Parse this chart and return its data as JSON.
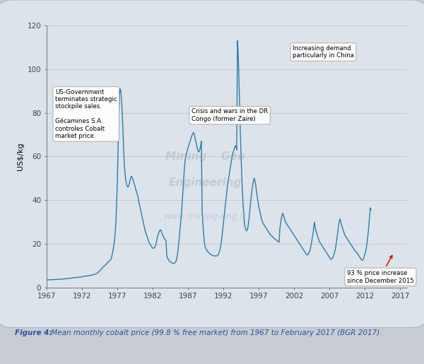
{
  "ylabel": "US$/kg",
  "xlim": [
    1967,
    2018
  ],
  "ylim": [
    0,
    120
  ],
  "yticks": [
    0,
    20,
    40,
    60,
    80,
    100,
    120
  ],
  "xticks": [
    1967,
    1972,
    1977,
    1982,
    1987,
    1992,
    1997,
    2002,
    2007,
    2012,
    2017
  ],
  "line_color": "#2d7ea8",
  "outer_bg": "#d4d9e0",
  "inner_bg": "#ffffff",
  "caption_label": "Figure 4:",
  "caption_text": " Mean monthly cobalt price (99.8 % free market) from 1967 to February 2017 (BGR 2017).",
  "caption_color": "#2b4fa0",
  "watermark1": "Mining    Geo",
  "watermark2": "Engineering",
  "watermark3": "www.mining-eng.ir",
  "ann1_text": "US-Government\nterminates strategic\nstockpile sales.\n\nGécamines S.A.\ncontroles Cobalt\nmarket price.",
  "ann2_text": "Crisis and wars in the DR\nCongo (former Zaire)",
  "ann3_text": "Increasing demand\nparticularly in China",
  "ann4_text": "93 % price increase\nsince December 2015",
  "years": [
    1967.0,
    1967.1,
    1967.2,
    1967.3,
    1967.4,
    1967.5,
    1967.6,
    1967.7,
    1967.8,
    1967.9,
    1968.0,
    1968.1,
    1968.2,
    1968.3,
    1968.4,
    1968.5,
    1968.6,
    1968.7,
    1968.8,
    1968.9,
    1969.0,
    1969.1,
    1969.2,
    1969.3,
    1969.4,
    1969.5,
    1969.6,
    1969.7,
    1969.8,
    1969.9,
    1970.0,
    1970.1,
    1970.2,
    1970.3,
    1970.4,
    1970.5,
    1970.6,
    1970.7,
    1970.8,
    1970.9,
    1971.0,
    1971.1,
    1971.2,
    1971.3,
    1971.4,
    1971.5,
    1971.6,
    1971.7,
    1971.8,
    1971.9,
    1972.0,
    1972.1,
    1972.2,
    1972.3,
    1972.4,
    1972.5,
    1972.6,
    1972.7,
    1972.8,
    1972.9,
    1973.0,
    1973.1,
    1973.2,
    1973.3,
    1973.4,
    1973.5,
    1973.6,
    1973.7,
    1973.8,
    1973.9,
    1974.0,
    1974.1,
    1974.2,
    1974.3,
    1974.4,
    1974.5,
    1974.6,
    1974.7,
    1974.8,
    1974.9,
    1975.0,
    1975.1,
    1975.2,
    1975.3,
    1975.4,
    1975.5,
    1975.6,
    1975.7,
    1975.8,
    1975.9,
    1976.0,
    1976.1,
    1976.2,
    1976.3,
    1976.4,
    1976.5,
    1976.6,
    1976.7,
    1976.8,
    1976.9,
    1977.0,
    1977.1,
    1977.2,
    1977.3,
    1977.4,
    1977.5,
    1977.6,
    1977.7,
    1977.8,
    1977.9,
    1978.0,
    1978.1,
    1978.2,
    1978.3,
    1978.4,
    1978.5,
    1978.6,
    1978.7,
    1978.8,
    1978.9,
    1979.0,
    1979.1,
    1979.2,
    1979.3,
    1979.4,
    1979.5,
    1979.6,
    1979.7,
    1979.8,
    1979.9,
    1980.0,
    1980.1,
    1980.2,
    1980.3,
    1980.4,
    1980.5,
    1980.6,
    1980.7,
    1980.8,
    1980.9,
    1981.0,
    1981.1,
    1981.2,
    1981.3,
    1981.4,
    1981.5,
    1981.6,
    1981.7,
    1981.8,
    1981.9,
    1982.0,
    1982.1,
    1982.2,
    1982.3,
    1982.4,
    1982.5,
    1982.6,
    1982.7,
    1982.8,
    1982.9,
    1983.0,
    1983.1,
    1983.2,
    1983.3,
    1983.4,
    1983.5,
    1983.6,
    1983.7,
    1983.8,
    1983.9,
    1984.0,
    1984.1,
    1984.2,
    1984.3,
    1984.4,
    1984.5,
    1984.6,
    1984.7,
    1984.8,
    1984.9,
    1985.0,
    1985.1,
    1985.2,
    1985.3,
    1985.4,
    1985.5,
    1985.6,
    1985.7,
    1985.8,
    1985.9,
    1986.0,
    1986.1,
    1986.2,
    1986.3,
    1986.4,
    1986.5,
    1986.6,
    1986.7,
    1986.8,
    1986.9,
    1987.0,
    1987.1,
    1987.2,
    1987.3,
    1987.4,
    1987.5,
    1987.6,
    1987.7,
    1987.8,
    1987.9,
    1988.0,
    1988.1,
    1988.2,
    1988.3,
    1988.4,
    1988.5,
    1988.6,
    1988.7,
    1988.8,
    1988.9,
    1989.0,
    1989.1,
    1989.2,
    1989.3,
    1989.4,
    1989.5,
    1989.6,
    1989.7,
    1989.8,
    1989.9,
    1990.0,
    1990.1,
    1990.2,
    1990.3,
    1990.4,
    1990.5,
    1990.6,
    1990.7,
    1990.8,
    1990.9,
    1991.0,
    1991.1,
    1991.2,
    1991.3,
    1991.4,
    1991.5,
    1991.6,
    1991.7,
    1991.8,
    1991.9,
    1992.0,
    1992.1,
    1992.2,
    1992.3,
    1992.4,
    1992.5,
    1992.6,
    1992.7,
    1992.8,
    1992.9,
    1993.0,
    1993.1,
    1993.2,
    1993.3,
    1993.4,
    1993.5,
    1993.6,
    1993.7,
    1993.8,
    1993.9,
    1994.0,
    1994.1,
    1994.2,
    1994.3,
    1994.4,
    1994.5,
    1994.6,
    1994.7,
    1994.8,
    1994.9,
    1995.0,
    1995.1,
    1995.2,
    1995.3,
    1995.4,
    1995.5,
    1995.6,
    1995.7,
    1995.8,
    1995.9,
    1996.0,
    1996.1,
    1996.2,
    1996.3,
    1996.4,
    1996.5,
    1996.6,
    1996.7,
    1996.8,
    1996.9,
    1997.0,
    1997.1,
    1997.2,
    1997.3,
    1997.4,
    1997.5,
    1997.6,
    1997.7,
    1997.8,
    1997.9,
    1998.0,
    1998.1,
    1998.2,
    1998.3,
    1998.4,
    1998.5,
    1998.6,
    1998.7,
    1998.8,
    1998.9,
    1999.0,
    1999.1,
    1999.2,
    1999.3,
    1999.4,
    1999.5,
    1999.6,
    1999.7,
    1999.8,
    1999.9,
    2000.0,
    2000.1,
    2000.2,
    2000.3,
    2000.4,
    2000.5,
    2000.6,
    2000.7,
    2000.8,
    2000.9,
    2001.0,
    2001.1,
    2001.2,
    2001.3,
    2001.4,
    2001.5,
    2001.6,
    2001.7,
    2001.8,
    2001.9,
    2002.0,
    2002.1,
    2002.2,
    2002.3,
    2002.4,
    2002.5,
    2002.6,
    2002.7,
    2002.8,
    2002.9,
    2003.0,
    2003.1,
    2003.2,
    2003.3,
    2003.4,
    2003.5,
    2003.6,
    2003.7,
    2003.8,
    2003.9,
    2004.0,
    2004.1,
    2004.2,
    2004.3,
    2004.4,
    2004.5,
    2004.6,
    2004.7,
    2004.8,
    2004.9,
    2005.0,
    2005.1,
    2005.2,
    2005.3,
    2005.4,
    2005.5,
    2005.6,
    2005.7,
    2005.8,
    2005.9,
    2006.0,
    2006.1,
    2006.2,
    2006.3,
    2006.4,
    2006.5,
    2006.6,
    2006.7,
    2006.8,
    2006.9,
    2007.0,
    2007.1,
    2007.2,
    2007.3,
    2007.4,
    2007.5,
    2007.6,
    2007.7,
    2007.8,
    2007.9,
    2008.0,
    2008.1,
    2008.2,
    2008.3,
    2008.4,
    2008.5,
    2008.6,
    2008.7,
    2008.8,
    2008.9,
    2009.0,
    2009.1,
    2009.2,
    2009.3,
    2009.4,
    2009.5,
    2009.6,
    2009.7,
    2009.8,
    2009.9,
    2010.0,
    2010.1,
    2010.2,
    2010.3,
    2010.4,
    2010.5,
    2010.6,
    2010.7,
    2010.8,
    2010.9,
    2011.0,
    2011.1,
    2011.2,
    2011.3,
    2011.4,
    2011.5,
    2011.6,
    2011.7,
    2011.8,
    2011.9,
    2012.0,
    2012.1,
    2012.2,
    2012.3,
    2012.4,
    2012.5,
    2012.6,
    2012.7,
    2012.8,
    2012.9,
    2013.0,
    2013.1,
    2013.2,
    2013.3,
    2013.4,
    2013.5,
    2013.6,
    2013.7,
    2013.8,
    2013.9,
    2014.0,
    2014.1,
    2014.2,
    2014.3,
    2014.4,
    2014.5,
    2014.6,
    2014.7,
    2014.8,
    2014.9,
    2015.0,
    2015.1,
    2015.2,
    2015.3,
    2015.4,
    2015.5,
    2015.6,
    2015.7,
    2015.8,
    2015.9,
    2016.0,
    2016.1,
    2016.2,
    2016.3,
    2016.4,
    2016.5,
    2016.6,
    2016.7,
    2016.8,
    2016.9,
    2017.0,
    2017.1
  ],
  "prices": [
    3.5,
    3.5,
    3.5,
    3.6,
    3.6,
    3.6,
    3.6,
    3.6,
    3.6,
    3.6,
    3.7,
    3.7,
    3.7,
    3.7,
    3.7,
    3.7,
    3.8,
    3.8,
    3.8,
    3.8,
    3.8,
    3.9,
    3.9,
    3.9,
    3.9,
    4.0,
    4.0,
    4.0,
    4.1,
    4.1,
    4.2,
    4.2,
    4.2,
    4.3,
    4.3,
    4.3,
    4.4,
    4.4,
    4.5,
    4.5,
    4.6,
    4.6,
    4.6,
    4.7,
    4.7,
    4.7,
    4.8,
    4.8,
    4.8,
    4.9,
    5.0,
    5.0,
    5.1,
    5.1,
    5.2,
    5.2,
    5.3,
    5.3,
    5.4,
    5.4,
    5.5,
    5.5,
    5.6,
    5.6,
    5.7,
    5.8,
    5.9,
    6.0,
    6.1,
    6.2,
    6.4,
    6.5,
    6.7,
    7.0,
    7.3,
    7.6,
    8.0,
    8.3,
    8.6,
    9.0,
    9.4,
    9.7,
    10.0,
    10.3,
    10.6,
    11.0,
    11.3,
    11.6,
    12.0,
    12.2,
    12.5,
    13.0,
    14.0,
    15.5,
    17.0,
    19.0,
    21.5,
    25.0,
    30.0,
    38.0,
    48.0,
    62.0,
    76.0,
    88.0,
    91.0,
    90.0,
    86.0,
    80.0,
    72.0,
    63.0,
    56.0,
    52.0,
    49.0,
    47.5,
    46.5,
    46.0,
    46.5,
    47.5,
    49.0,
    50.5,
    51.0,
    50.5,
    49.5,
    48.5,
    47.5,
    46.5,
    45.0,
    44.0,
    43.0,
    42.0,
    40.0,
    38.5,
    37.0,
    35.5,
    34.0,
    32.5,
    31.0,
    29.5,
    28.0,
    26.5,
    25.5,
    24.5,
    23.5,
    22.5,
    21.5,
    20.5,
    20.0,
    19.5,
    19.0,
    18.5,
    18.0,
    18.0,
    18.2,
    18.5,
    19.0,
    20.5,
    22.0,
    23.5,
    24.5,
    25.5,
    26.0,
    26.5,
    26.0,
    25.0,
    24.2,
    23.5,
    22.8,
    22.2,
    21.8,
    21.4,
    14.5,
    13.5,
    13.0,
    12.5,
    12.0,
    11.8,
    11.6,
    11.4,
    11.2,
    11.0,
    11.0,
    11.2,
    11.5,
    12.0,
    13.0,
    15.0,
    17.5,
    20.5,
    24.0,
    27.5,
    31.0,
    35.0,
    40.0,
    45.0,
    50.0,
    55.0,
    58.0,
    60.0,
    61.5,
    63.0,
    64.0,
    65.0,
    66.0,
    67.0,
    68.0,
    69.0,
    70.0,
    70.5,
    71.0,
    70.0,
    68.5,
    67.0,
    65.5,
    64.0,
    63.0,
    62.0,
    62.5,
    63.5,
    65.0,
    67.0,
    36.0,
    30.0,
    25.0,
    21.0,
    19.0,
    18.0,
    17.5,
    17.0,
    16.5,
    16.0,
    15.8,
    15.5,
    15.2,
    15.0,
    14.8,
    14.7,
    14.6,
    14.5,
    14.5,
    14.5,
    14.5,
    14.5,
    14.8,
    15.2,
    16.0,
    17.0,
    18.5,
    20.5,
    23.0,
    26.0,
    29.0,
    32.0,
    35.0,
    38.0,
    41.0,
    44.0,
    46.5,
    49.0,
    51.0,
    53.0,
    55.0,
    57.0,
    59.0,
    61.0,
    62.0,
    63.0,
    64.0,
    65.0,
    64.5,
    63.0,
    113.0,
    108.0,
    97.0,
    85.0,
    72.0,
    62.0,
    52.0,
    44.0,
    38.0,
    34.0,
    29.0,
    27.5,
    26.5,
    26.0,
    26.5,
    28.0,
    30.5,
    33.5,
    37.0,
    40.0,
    43.0,
    45.5,
    47.5,
    49.5,
    50.0,
    48.5,
    46.5,
    44.0,
    41.5,
    39.5,
    37.5,
    36.0,
    34.5,
    33.0,
    31.5,
    30.5,
    29.5,
    29.0,
    28.5,
    28.0,
    27.5,
    27.0,
    26.5,
    26.0,
    25.5,
    25.0,
    24.5,
    24.0,
    23.8,
    23.5,
    23.2,
    22.8,
    22.5,
    22.2,
    22.0,
    21.8,
    21.5,
    21.2,
    21.0,
    20.8,
    27.0,
    29.0,
    31.5,
    33.0,
    34.0,
    33.5,
    32.0,
    31.0,
    30.0,
    29.5,
    29.0,
    28.5,
    28.0,
    27.5,
    27.0,
    26.5,
    26.0,
    25.5,
    25.0,
    24.5,
    24.0,
    23.5,
    23.0,
    22.5,
    22.0,
    21.5,
    21.0,
    20.5,
    20.0,
    19.5,
    19.0,
    18.5,
    18.0,
    17.5,
    17.0,
    16.5,
    16.0,
    15.5,
    15.0,
    15.0,
    15.2,
    15.8,
    16.5,
    17.5,
    19.0,
    21.0,
    23.0,
    25.0,
    27.5,
    30.0,
    27.5,
    26.0,
    25.0,
    24.0,
    23.0,
    22.0,
    21.0,
    20.5,
    20.0,
    19.5,
    19.0,
    18.5,
    18.0,
    17.5,
    17.0,
    16.5,
    16.0,
    15.5,
    15.0,
    14.5,
    14.0,
    13.5,
    13.0,
    13.0,
    13.3,
    13.8,
    14.5,
    15.5,
    16.8,
    18.5,
    20.5,
    23.0,
    25.5,
    28.0,
    30.0,
    31.5,
    30.5,
    29.0,
    28.0,
    27.0,
    26.0,
    25.0,
    24.0,
    23.5,
    23.0,
    22.5,
    22.0,
    21.5,
    21.0,
    20.5,
    20.0,
    19.5,
    19.0,
    18.5,
    18.0,
    17.5,
    17.0,
    16.5,
    16.2,
    16.0,
    15.5,
    15.0,
    14.5,
    14.0,
    13.5,
    13.0,
    12.5,
    12.5,
    13.0,
    13.8,
    14.8,
    16.0,
    17.5,
    19.5,
    22.0,
    25.0,
    28.5,
    32.5,
    36.5,
    35.5
  ]
}
